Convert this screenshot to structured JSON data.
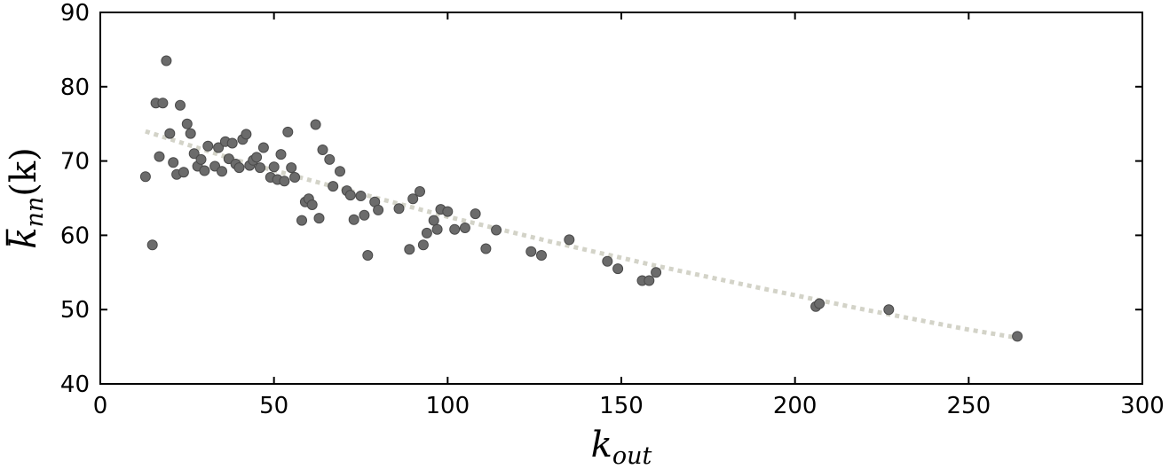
{
  "chart_data": {
    "type": "scatter",
    "title": "",
    "xlabel": "k",
    "xlabel_sub": "out",
    "ylabel_main": "k",
    "ylabel_sub": "nn",
    "ylabel_args": "(k)",
    "xlim": [
      0,
      300
    ],
    "ylim": [
      40,
      90
    ],
    "xticks": [
      0,
      50,
      100,
      150,
      200,
      250,
      300
    ],
    "yticks": [
      40,
      50,
      60,
      70,
      80,
      90
    ],
    "grid": false,
    "legend": "none",
    "colors": {
      "points": "#6b6b6b",
      "points_edge": "#4a4a4a",
      "fit": "#d3d3c8"
    },
    "series": [
      {
        "kind": "points",
        "x": [
          13,
          15,
          16,
          17,
          18,
          19,
          20,
          21,
          22,
          23,
          24,
          25,
          26,
          27,
          28,
          29,
          30,
          31,
          33,
          34,
          35,
          36,
          37,
          38,
          39,
          40,
          41,
          42,
          43,
          44,
          45,
          46,
          47,
          49,
          50,
          51,
          52,
          53,
          54,
          55,
          56,
          58,
          59,
          60,
          61,
          62,
          63,
          64,
          66,
          67,
          69,
          71,
          72,
          73,
          75,
          76,
          77,
          79,
          80,
          86,
          89,
          90,
          92,
          93,
          94,
          96,
          97,
          98,
          100,
          102,
          105,
          108,
          111,
          114,
          124,
          127,
          135,
          146,
          149,
          156,
          158,
          160,
          206,
          207,
          227,
          264
        ],
        "y": [
          67.9,
          58.7,
          77.8,
          70.6,
          77.8,
          83.5,
          73.7,
          69.8,
          68.2,
          77.5,
          68.5,
          75.0,
          73.7,
          71.0,
          69.3,
          70.2,
          68.7,
          72.0,
          69.3,
          71.8,
          68.6,
          72.6,
          70.3,
          72.4,
          69.6,
          69.1,
          72.9,
          73.6,
          69.4,
          70.1,
          70.5,
          69.1,
          71.8,
          67.8,
          69.2,
          67.5,
          70.9,
          67.3,
          73.9,
          69.1,
          67.8,
          62.0,
          64.5,
          64.9,
          64.1,
          74.9,
          62.3,
          71.5,
          70.2,
          66.6,
          68.6,
          66.0,
          65.4,
          62.1,
          65.3,
          62.7,
          57.3,
          64.5,
          63.4,
          63.6,
          58.1,
          64.9,
          65.9,
          58.7,
          60.3,
          62.0,
          60.8,
          63.5,
          63.2,
          60.8,
          61.0,
          62.9,
          58.2,
          60.7,
          57.8,
          57.3,
          59.4,
          56.5,
          55.5,
          53.9,
          53.9,
          55.0,
          50.4,
          50.8,
          50.0,
          46.4
        ]
      },
      {
        "kind": "fit",
        "x": [
          13,
          40,
          70,
          100,
          130,
          160,
          190,
          220,
          250,
          264
        ],
        "y": [
          74.0,
          70.0,
          66.2,
          62.5,
          59.1,
          55.9,
          52.9,
          50.0,
          47.3,
          46.2
        ]
      }
    ]
  }
}
